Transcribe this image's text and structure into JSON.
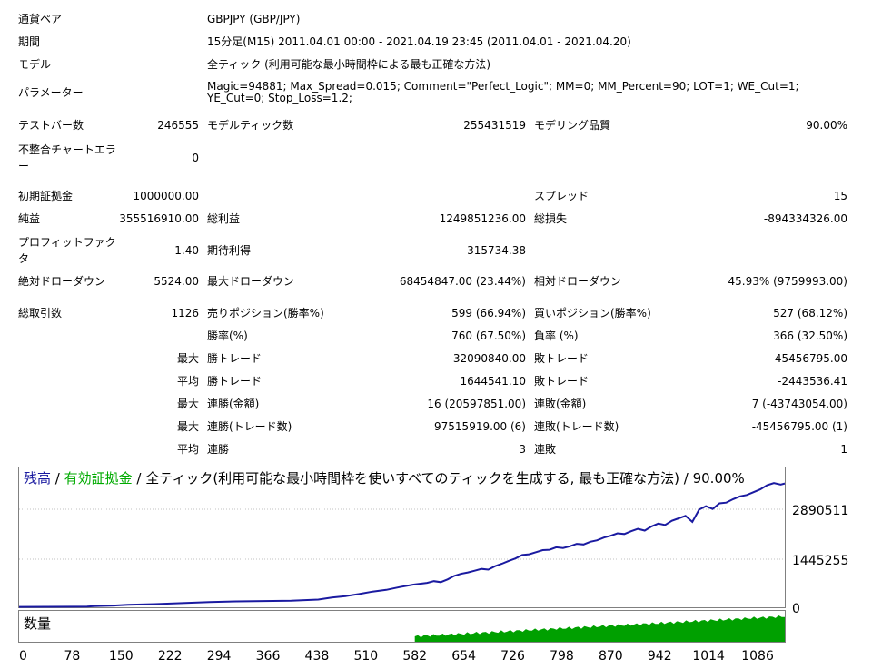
{
  "report": {
    "symbol_label": "通貨ペア",
    "symbol_value": "GBPJPY (GBP/JPY)",
    "period_label": "期間",
    "period_value": "15分足(M15) 2011.04.01 00:00 - 2021.04.19 23:45 (2011.04.01 - 2021.04.20)",
    "model_label": "モデル",
    "model_value": "全ティック (利用可能な最小時間枠による最も正確な方法)",
    "params_label": "パラメーター",
    "params_value": "Magic=94881; Max_Spread=0.015; Comment=\"Perfect_Logic\"; MM=0; MM_Percent=90; LOT=1; WE_Cut=1; YE_Cut=0; Stop_Loss=1.2;"
  },
  "stats": {
    "bars_label": "テストバー数",
    "bars": "246555",
    "ticks_label": "モデルティック数",
    "ticks": "255431519",
    "quality_label": "モデリング品質",
    "quality": "90.00%",
    "mismatch_label": "不整合チャートエラー",
    "mismatch": "0",
    "deposit_label": "初期証拠金",
    "deposit": "1000000.00",
    "spread_label": "スプレッド",
    "spread": "15",
    "net_label": "純益",
    "net": "355516910.00",
    "gross_profit_label": "総利益",
    "gross_profit": "1249851236.00",
    "gross_loss_label": "総損失",
    "gross_loss": "-894334326.00",
    "pf_label": "プロフィットファクタ",
    "pf": "1.40",
    "expected_label": "期待利得",
    "expected": "315734.38",
    "abs_dd_label": "絶対ドローダウン",
    "abs_dd": "5524.00",
    "max_dd_label": "最大ドローダウン",
    "max_dd": "68454847.00 (23.44%)",
    "rel_dd_label": "相対ドローダウン",
    "rel_dd": "45.93% (9759993.00)",
    "total_trades_label": "総取引数",
    "total_trades": "1126",
    "short_label": "売りポジション(勝率%)",
    "short": "599 (66.94%)",
    "long_label": "買いポジション(勝率%)",
    "long": "527 (68.12%)",
    "win_pct_label": "勝率(%)",
    "win_pct": "760 (67.50%)",
    "loss_pct_label": "負率 (%)",
    "loss_pct": "366 (32.50%)",
    "max_label": "最大",
    "avg_label": "平均",
    "win_trade_label": "勝トレード",
    "loss_trade_label": "敗トレード",
    "max_win": "32090840.00",
    "max_loss": "-45456795.00",
    "avg_win": "1644541.10",
    "avg_loss": "-2443536.41",
    "consec_win_amt_label": "連勝(金額)",
    "consec_win_amt": "16 (20597851.00)",
    "consec_loss_amt_label": "連敗(金額)",
    "consec_loss_amt": "7 (-43743054.00)",
    "consec_win_cnt_label": "連勝(トレード数)",
    "consec_win_cnt": "97515919.00 (6)",
    "consec_loss_cnt_label": "連敗(トレード数)",
    "consec_loss_cnt": "-45456795.00 (1)",
    "avg_consec_win_label": "連勝",
    "avg_consec_win": "3",
    "avg_consec_loss_label": "連敗",
    "avg_consec_loss": "1"
  },
  "chart_title": {
    "balance": "残高",
    "sep1": " / ",
    "equity": "有効証拠金",
    "rest": " / 全ティック(利用可能な最小時間枠を使いすべてのティックを生成する, 最も正確な方法) / 90.00%"
  },
  "volume_label": "数量",
  "colors": {
    "balance": "#1a1aa0",
    "equity": "#00aa00",
    "volume": "#00a000",
    "grid": "#c0c0c0"
  },
  "chart_data": {
    "type": "line",
    "title": "残高 / 有効証拠金 / 全ティック(利用可能な最小時間枠を使いすべてのティックを生成する, 最も正確な方法) / 90.00%",
    "xlabel": "",
    "ylabel": "",
    "x_ticks": [
      0,
      78,
      150,
      222,
      294,
      366,
      438,
      510,
      582,
      654,
      726,
      798,
      870,
      942,
      1014,
      1086
    ],
    "y_ticks": [
      "0",
      "1445255",
      "2890511"
    ],
    "xlim": [
      0,
      1126
    ],
    "ylim": [
      0,
      380000000
    ],
    "grid": true,
    "series": [
      {
        "name": "残高",
        "x": [
          0,
          40,
          80,
          100,
          110,
          120,
          140,
          160,
          200,
          240,
          280,
          320,
          360,
          400,
          440,
          460,
          480,
          500,
          520,
          540,
          560,
          580,
          600,
          610,
          620,
          630,
          640,
          650,
          660,
          670,
          680,
          690,
          700,
          710,
          720,
          730,
          740,
          750,
          760,
          770,
          780,
          790,
          800,
          810,
          820,
          830,
          840,
          850,
          860,
          870,
          880,
          890,
          900,
          910,
          920,
          930,
          940,
          950,
          960,
          970,
          980,
          990,
          1000,
          1010,
          1020,
          1030,
          1040,
          1050,
          1060,
          1070,
          1080,
          1090,
          1100,
          1110,
          1120,
          1126
        ],
        "y": [
          1000000,
          1200000,
          1500000,
          2000000,
          3500000,
          4000000,
          5000000,
          7000000,
          9000000,
          12000000,
          15000000,
          17000000,
          18000000,
          19000000,
          22000000,
          28000000,
          32000000,
          38000000,
          45000000,
          50000000,
          58000000,
          65000000,
          70000000,
          75000000,
          72000000,
          80000000,
          90000000,
          96000000,
          100000000,
          105000000,
          110000000,
          108000000,
          118000000,
          125000000,
          133000000,
          140000000,
          150000000,
          152000000,
          158000000,
          164000000,
          165000000,
          172000000,
          170000000,
          175000000,
          182000000,
          180000000,
          188000000,
          192000000,
          200000000,
          205000000,
          212000000,
          210000000,
          218000000,
          225000000,
          220000000,
          232000000,
          240000000,
          236000000,
          248000000,
          255000000,
          262000000,
          245000000,
          280000000,
          290000000,
          282000000,
          298000000,
          300000000,
          310000000,
          318000000,
          322000000,
          330000000,
          338000000,
          350000000,
          356000000,
          352000000,
          355000000
        ]
      }
    ],
    "volume": {
      "name": "数量",
      "start_x": 582,
      "end_x": 1126
    }
  }
}
